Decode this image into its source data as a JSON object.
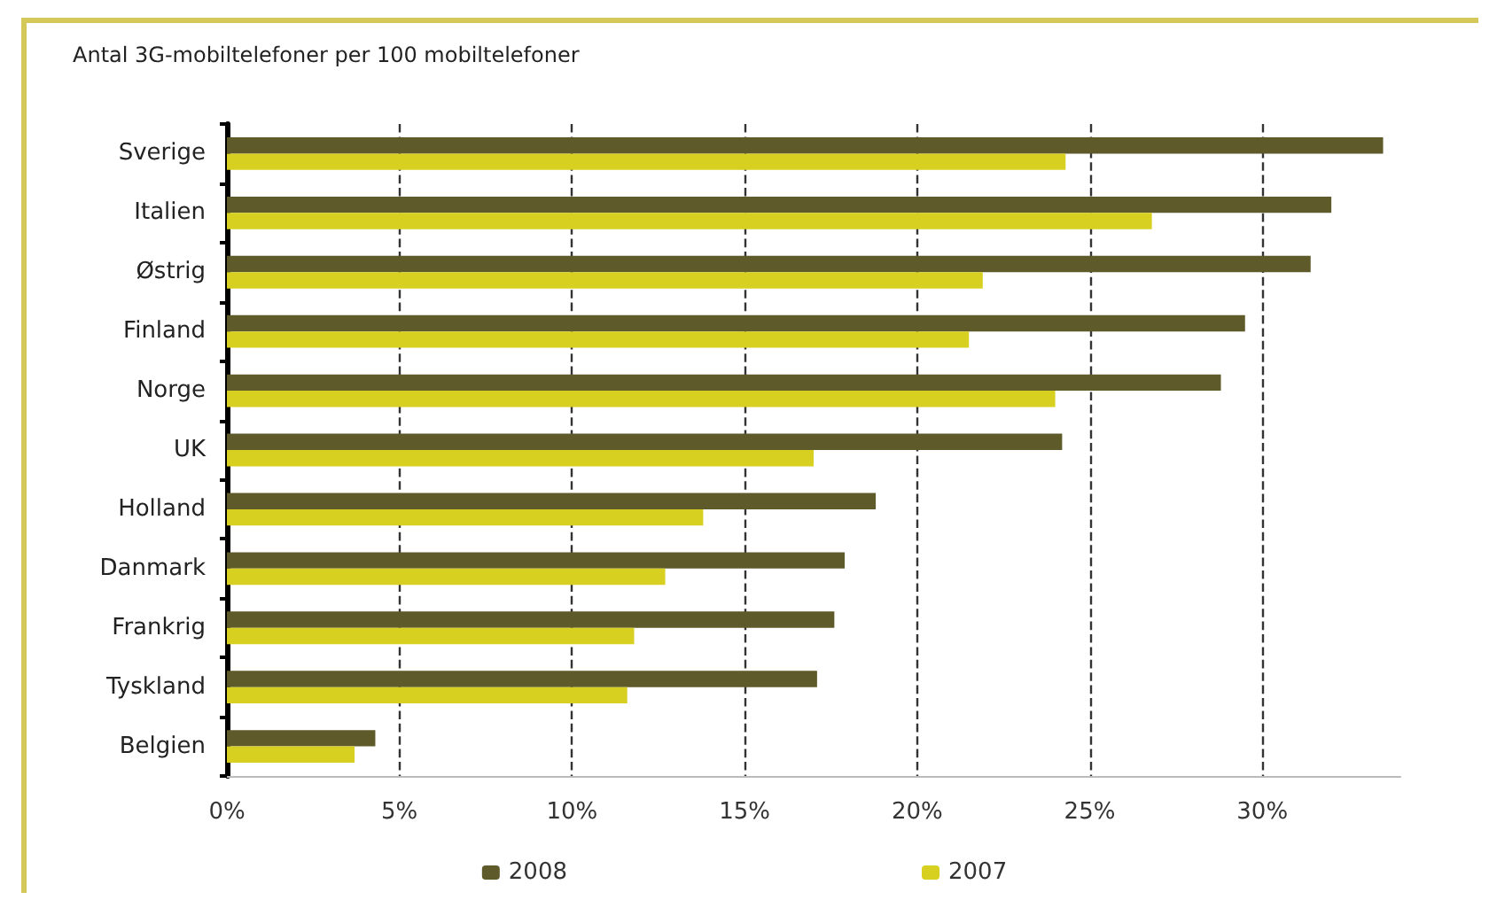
{
  "chart_data": {
    "type": "bar",
    "orientation": "horizontal",
    "title": "Antal 3G-mobiltelefoner per 100 mobiltelefoner",
    "categories": [
      "Sverige",
      "Italien",
      "Østrig",
      "Finland",
      "Norge",
      "UK",
      "Holland",
      "Danmark",
      "Frankrig",
      "Tyskland",
      "Belgien"
    ],
    "series": [
      {
        "name": "2008",
        "color": "#5f5a2a",
        "values": [
          33.5,
          32.0,
          31.4,
          29.5,
          28.8,
          24.2,
          18.8,
          17.9,
          17.6,
          17.1,
          4.3
        ]
      },
      {
        "name": "2007",
        "color": "#d8d020",
        "values": [
          24.3,
          26.8,
          21.9,
          21.5,
          24.0,
          17.0,
          13.8,
          12.7,
          11.8,
          11.6,
          3.7
        ]
      }
    ],
    "xlim": [
      0,
      34
    ],
    "xticks": [
      {
        "value": 0,
        "label": "0%"
      },
      {
        "value": 5,
        "label": "5%"
      },
      {
        "value": 10,
        "label": "10%"
      },
      {
        "value": 15,
        "label": "15%"
      },
      {
        "value": 20,
        "label": "20%"
      },
      {
        "value": 25,
        "label": "25%"
      },
      {
        "value": 30,
        "label": "30%"
      }
    ],
    "grid": "x",
    "legend": "bottom"
  }
}
